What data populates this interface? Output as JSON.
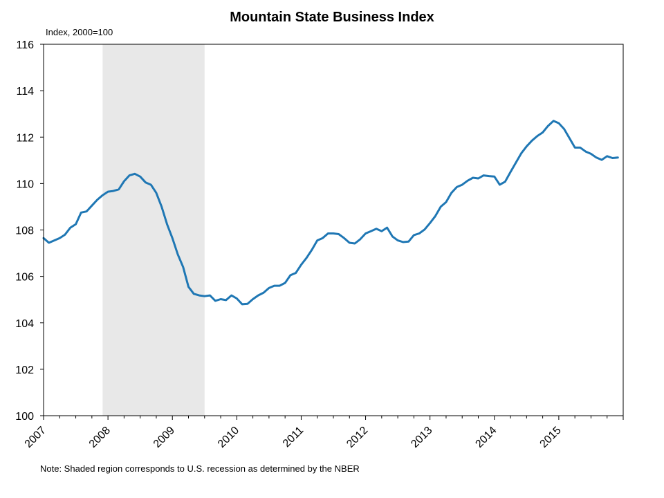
{
  "chart_data": {
    "type": "line",
    "title": "Mountain State Business Index",
    "unit_label": "Index, 2000=100",
    "note": "Note: Shaded region corresponds to U.S. recession as determined by the NBER",
    "ylim": [
      100,
      116
    ],
    "yticks": [
      "100",
      "102",
      "104",
      "106",
      "108",
      "110",
      "112",
      "114",
      "116"
    ],
    "xlim": [
      2007.0,
      2016.0
    ],
    "xticks": [
      "2007",
      "2008",
      "2009",
      "2010",
      "2011",
      "2012",
      "2013",
      "2014",
      "2015"
    ],
    "grid": false,
    "recession": {
      "start": 2007.917,
      "end": 2009.5
    },
    "colors": {
      "line": "#1f77b4",
      "recession": "#e8e8e8"
    },
    "series": [
      {
        "x": [
          2007.0,
          2007.083,
          2007.167,
          2007.25,
          2007.333,
          2007.417,
          2007.5,
          2007.583,
          2007.667,
          2007.75,
          2007.833,
          2007.917,
          2008.0,
          2008.083,
          2008.167,
          2008.25,
          2008.333,
          2008.417,
          2008.5,
          2008.583,
          2008.667,
          2008.75,
          2008.833,
          2008.917,
          2009.0,
          2009.083,
          2009.167,
          2009.25,
          2009.333,
          2009.417,
          2009.5,
          2009.583,
          2009.667,
          2009.75,
          2009.833,
          2009.917,
          2010.0,
          2010.083,
          2010.167,
          2010.25,
          2010.333,
          2010.417,
          2010.5,
          2010.583,
          2010.667,
          2010.75,
          2010.833,
          2010.917,
          2011.0,
          2011.083,
          2011.167,
          2011.25,
          2011.333,
          2011.417,
          2011.5,
          2011.583,
          2011.667,
          2011.75,
          2011.833,
          2011.917,
          2012.0,
          2012.083,
          2012.167,
          2012.25,
          2012.333,
          2012.417,
          2012.5,
          2012.583,
          2012.667,
          2012.75,
          2012.833,
          2012.917,
          2013.0,
          2013.083,
          2013.167,
          2013.25,
          2013.333,
          2013.417,
          2013.5,
          2013.583,
          2013.667,
          2013.75,
          2013.833,
          2013.917,
          2014.0,
          2014.083,
          2014.167,
          2014.25,
          2014.333,
          2014.417,
          2014.5,
          2014.583,
          2014.667,
          2014.75,
          2014.833,
          2014.917,
          2015.0,
          2015.083,
          2015.167,
          2015.25,
          2015.333,
          2015.417,
          2015.5,
          2015.583,
          2015.667,
          2015.75,
          2015.833,
          2015.917
        ],
        "values": [
          107.65,
          107.45,
          107.55,
          107.65,
          107.8,
          108.1,
          108.25,
          108.75,
          108.8,
          109.05,
          109.3,
          109.5,
          109.65,
          109.68,
          109.75,
          110.1,
          110.35,
          110.42,
          110.3,
          110.05,
          109.95,
          109.6,
          109.0,
          108.25,
          107.65,
          106.95,
          106.4,
          105.55,
          105.25,
          105.18,
          105.15,
          105.18,
          104.95,
          105.02,
          104.98,
          105.18,
          105.05,
          104.8,
          104.82,
          105.02,
          105.18,
          105.3,
          105.5,
          105.6,
          105.6,
          105.72,
          106.05,
          106.15,
          106.5,
          106.8,
          107.15,
          107.55,
          107.65,
          107.85,
          107.85,
          107.82,
          107.65,
          107.45,
          107.42,
          107.6,
          107.85,
          107.95,
          108.05,
          107.95,
          108.1,
          107.72,
          107.55,
          107.48,
          107.5,
          107.78,
          107.85,
          108.02,
          108.3,
          108.6,
          109.0,
          109.2,
          109.6,
          109.85,
          109.95,
          110.12,
          110.25,
          110.22,
          110.35,
          110.32,
          110.3,
          109.95,
          110.08,
          110.5,
          110.9,
          111.3,
          111.6,
          111.85,
          112.05,
          112.2,
          112.48,
          112.7,
          112.6,
          112.35,
          111.95,
          111.55,
          111.55,
          111.38,
          111.28,
          111.12,
          111.02,
          111.18,
          111.1,
          111.12
        ]
      }
    ]
  }
}
